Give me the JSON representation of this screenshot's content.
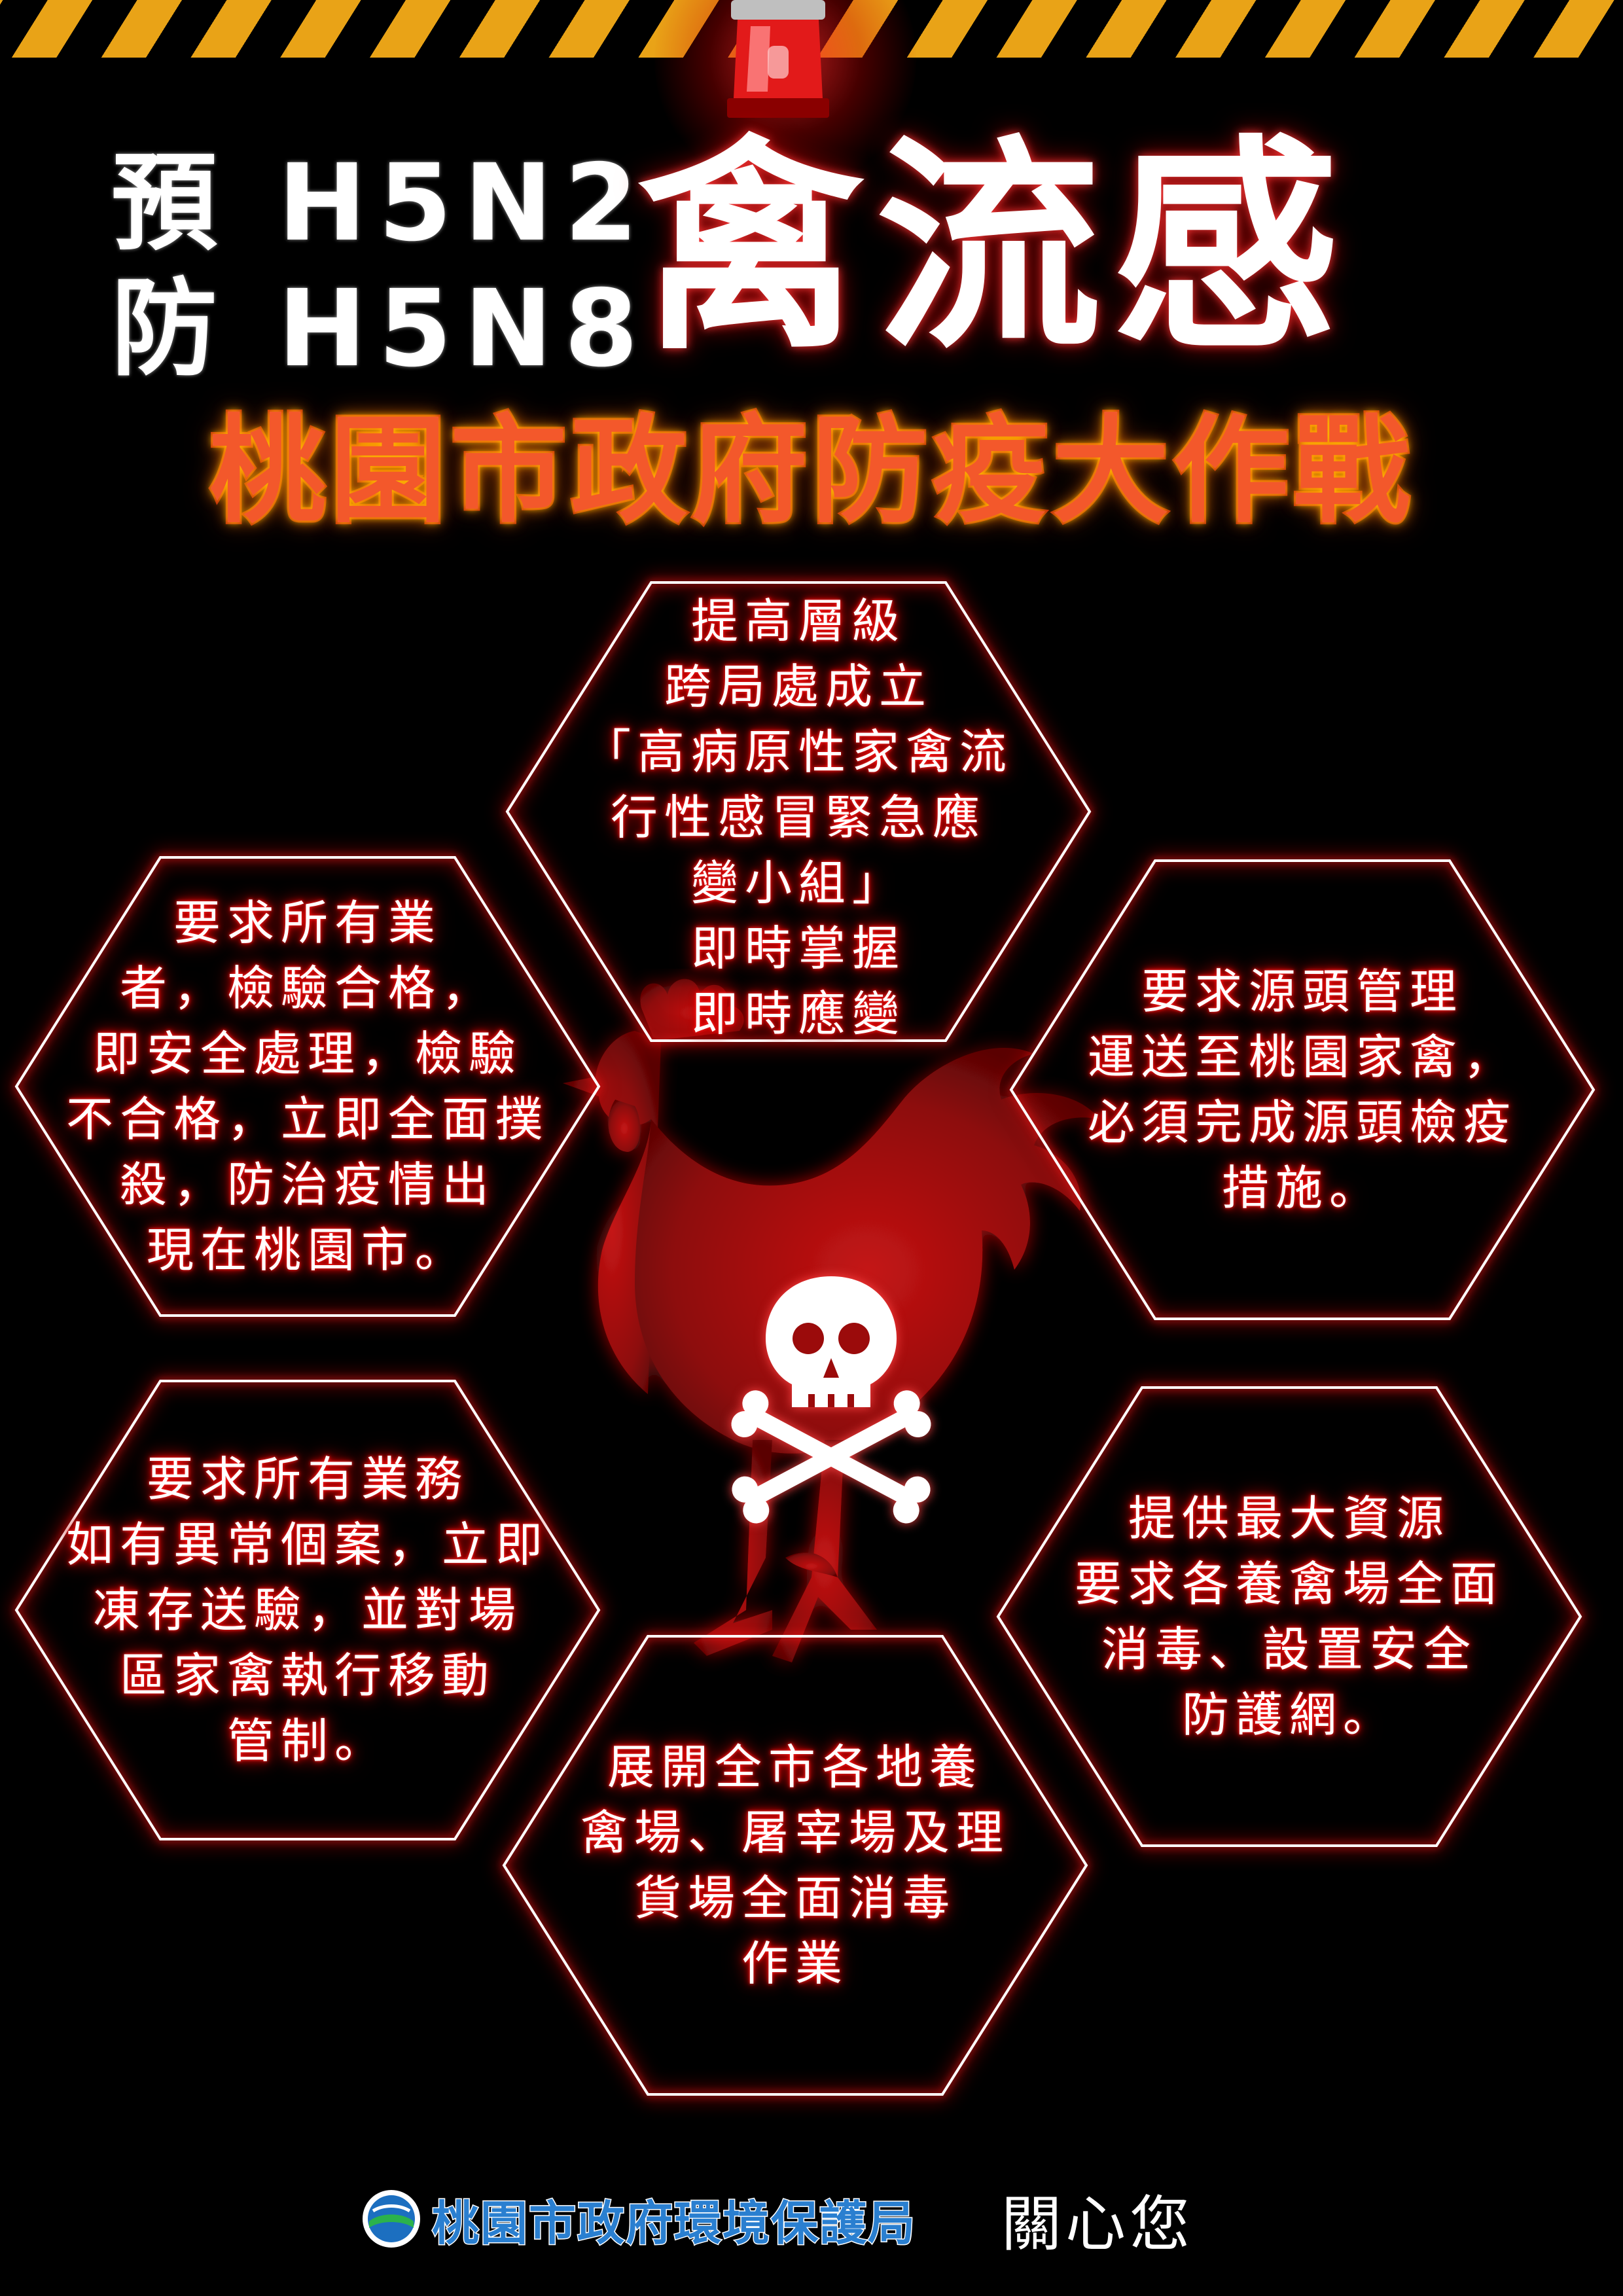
{
  "header": {
    "title_left_lines": [
      "預 H5N2",
      "防 H5N8"
    ],
    "title_main": "禽流感",
    "subtitle": "桃園市政府防疫大作戰"
  },
  "hexagons": [
    {
      "lines": [
        "提高層級",
        "跨局處成立",
        "「高病原性家禽流",
        "行性感冒緊急應",
        "變小組」",
        "即時掌握",
        "即時應變"
      ]
    },
    {
      "lines": [
        "要求所有業",
        "者，檢驗合格，",
        "即安全處理，檢驗",
        "不合格，立即全面撲",
        "殺，防治疫情出",
        "現在桃園市。"
      ]
    },
    {
      "lines": [
        "要求源頭管理",
        "運送至桃園家禽，",
        "必須完成源頭檢疫",
        "措施。"
      ]
    },
    {
      "lines": [
        "要求所有業務",
        "如有異常個案，立即",
        "凍存送驗，並對場",
        "區家禽執行移動",
        "管制。"
      ]
    },
    {
      "lines": [
        "提供最大資源",
        "要求各養禽場全面",
        "消毒、設置安全",
        "防護網。"
      ]
    },
    {
      "lines": [
        "展開全市各地養",
        "禽場、屠宰場及理",
        "貨場全面消毒",
        "作業"
      ]
    }
  ],
  "footer": {
    "org": "桃園市政府環境保護局",
    "care": "關心您"
  },
  "colors": {
    "hazard_yellow": "#e9a317",
    "subtitle_orange": "#f3582b",
    "glow_red": "#ff0000",
    "rooster_red": "#9b0b0b",
    "footer_blue": "#2a7fd0"
  },
  "icons": [
    "siren-icon",
    "rooster-icon",
    "skull-crossbones-icon",
    "epa-logo-icon"
  ]
}
